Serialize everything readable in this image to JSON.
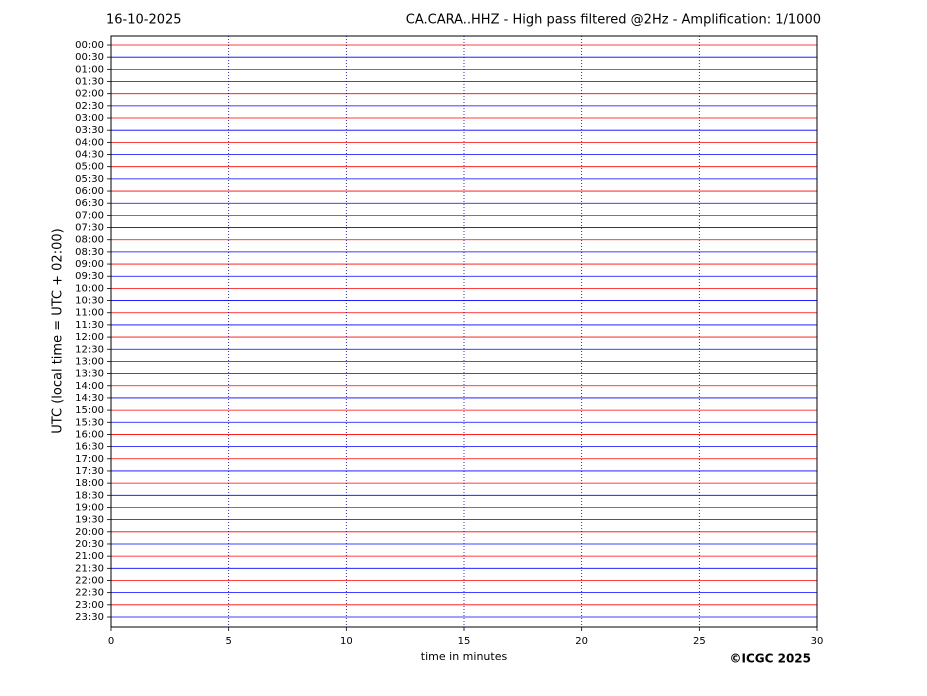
{
  "chart_data": {
    "type": "helicorder",
    "date": "16-10-2025",
    "title": "CA.CARA..HHZ - High pass filtered @2Hz - Amplification: 1/1000",
    "ylabel": "UTC (local time = UTC + 02:00)",
    "xlabel": "time in minutes",
    "copyright": "©ICGC 2025",
    "categories": [
      "00:00",
      "00:30",
      "01:00",
      "01:30",
      "02:00",
      "02:30",
      "03:00",
      "03:30",
      "04:00",
      "04:30",
      "05:00",
      "05:30",
      "06:00",
      "06:30",
      "07:00",
      "07:30",
      "08:00",
      "08:30",
      "09:00",
      "09:30",
      "10:00",
      "10:30",
      "11:00",
      "11:30",
      "12:00",
      "12:30",
      "13:00",
      "13:30",
      "14:00",
      "14:30",
      "15:00",
      "15:30",
      "16:00",
      "16:30",
      "17:00",
      "17:30",
      "18:00",
      "18:30",
      "19:00",
      "19:30",
      "20:00",
      "20:30",
      "21:00",
      "21:30",
      "22:00",
      "22:30",
      "23:00",
      "23:30"
    ],
    "colors": [
      "#ff0000",
      "#0000ff"
    ],
    "xlim": [
      0,
      30
    ],
    "xticks": [
      0,
      5,
      10,
      15,
      20,
      25,
      30
    ],
    "grid": true
  }
}
